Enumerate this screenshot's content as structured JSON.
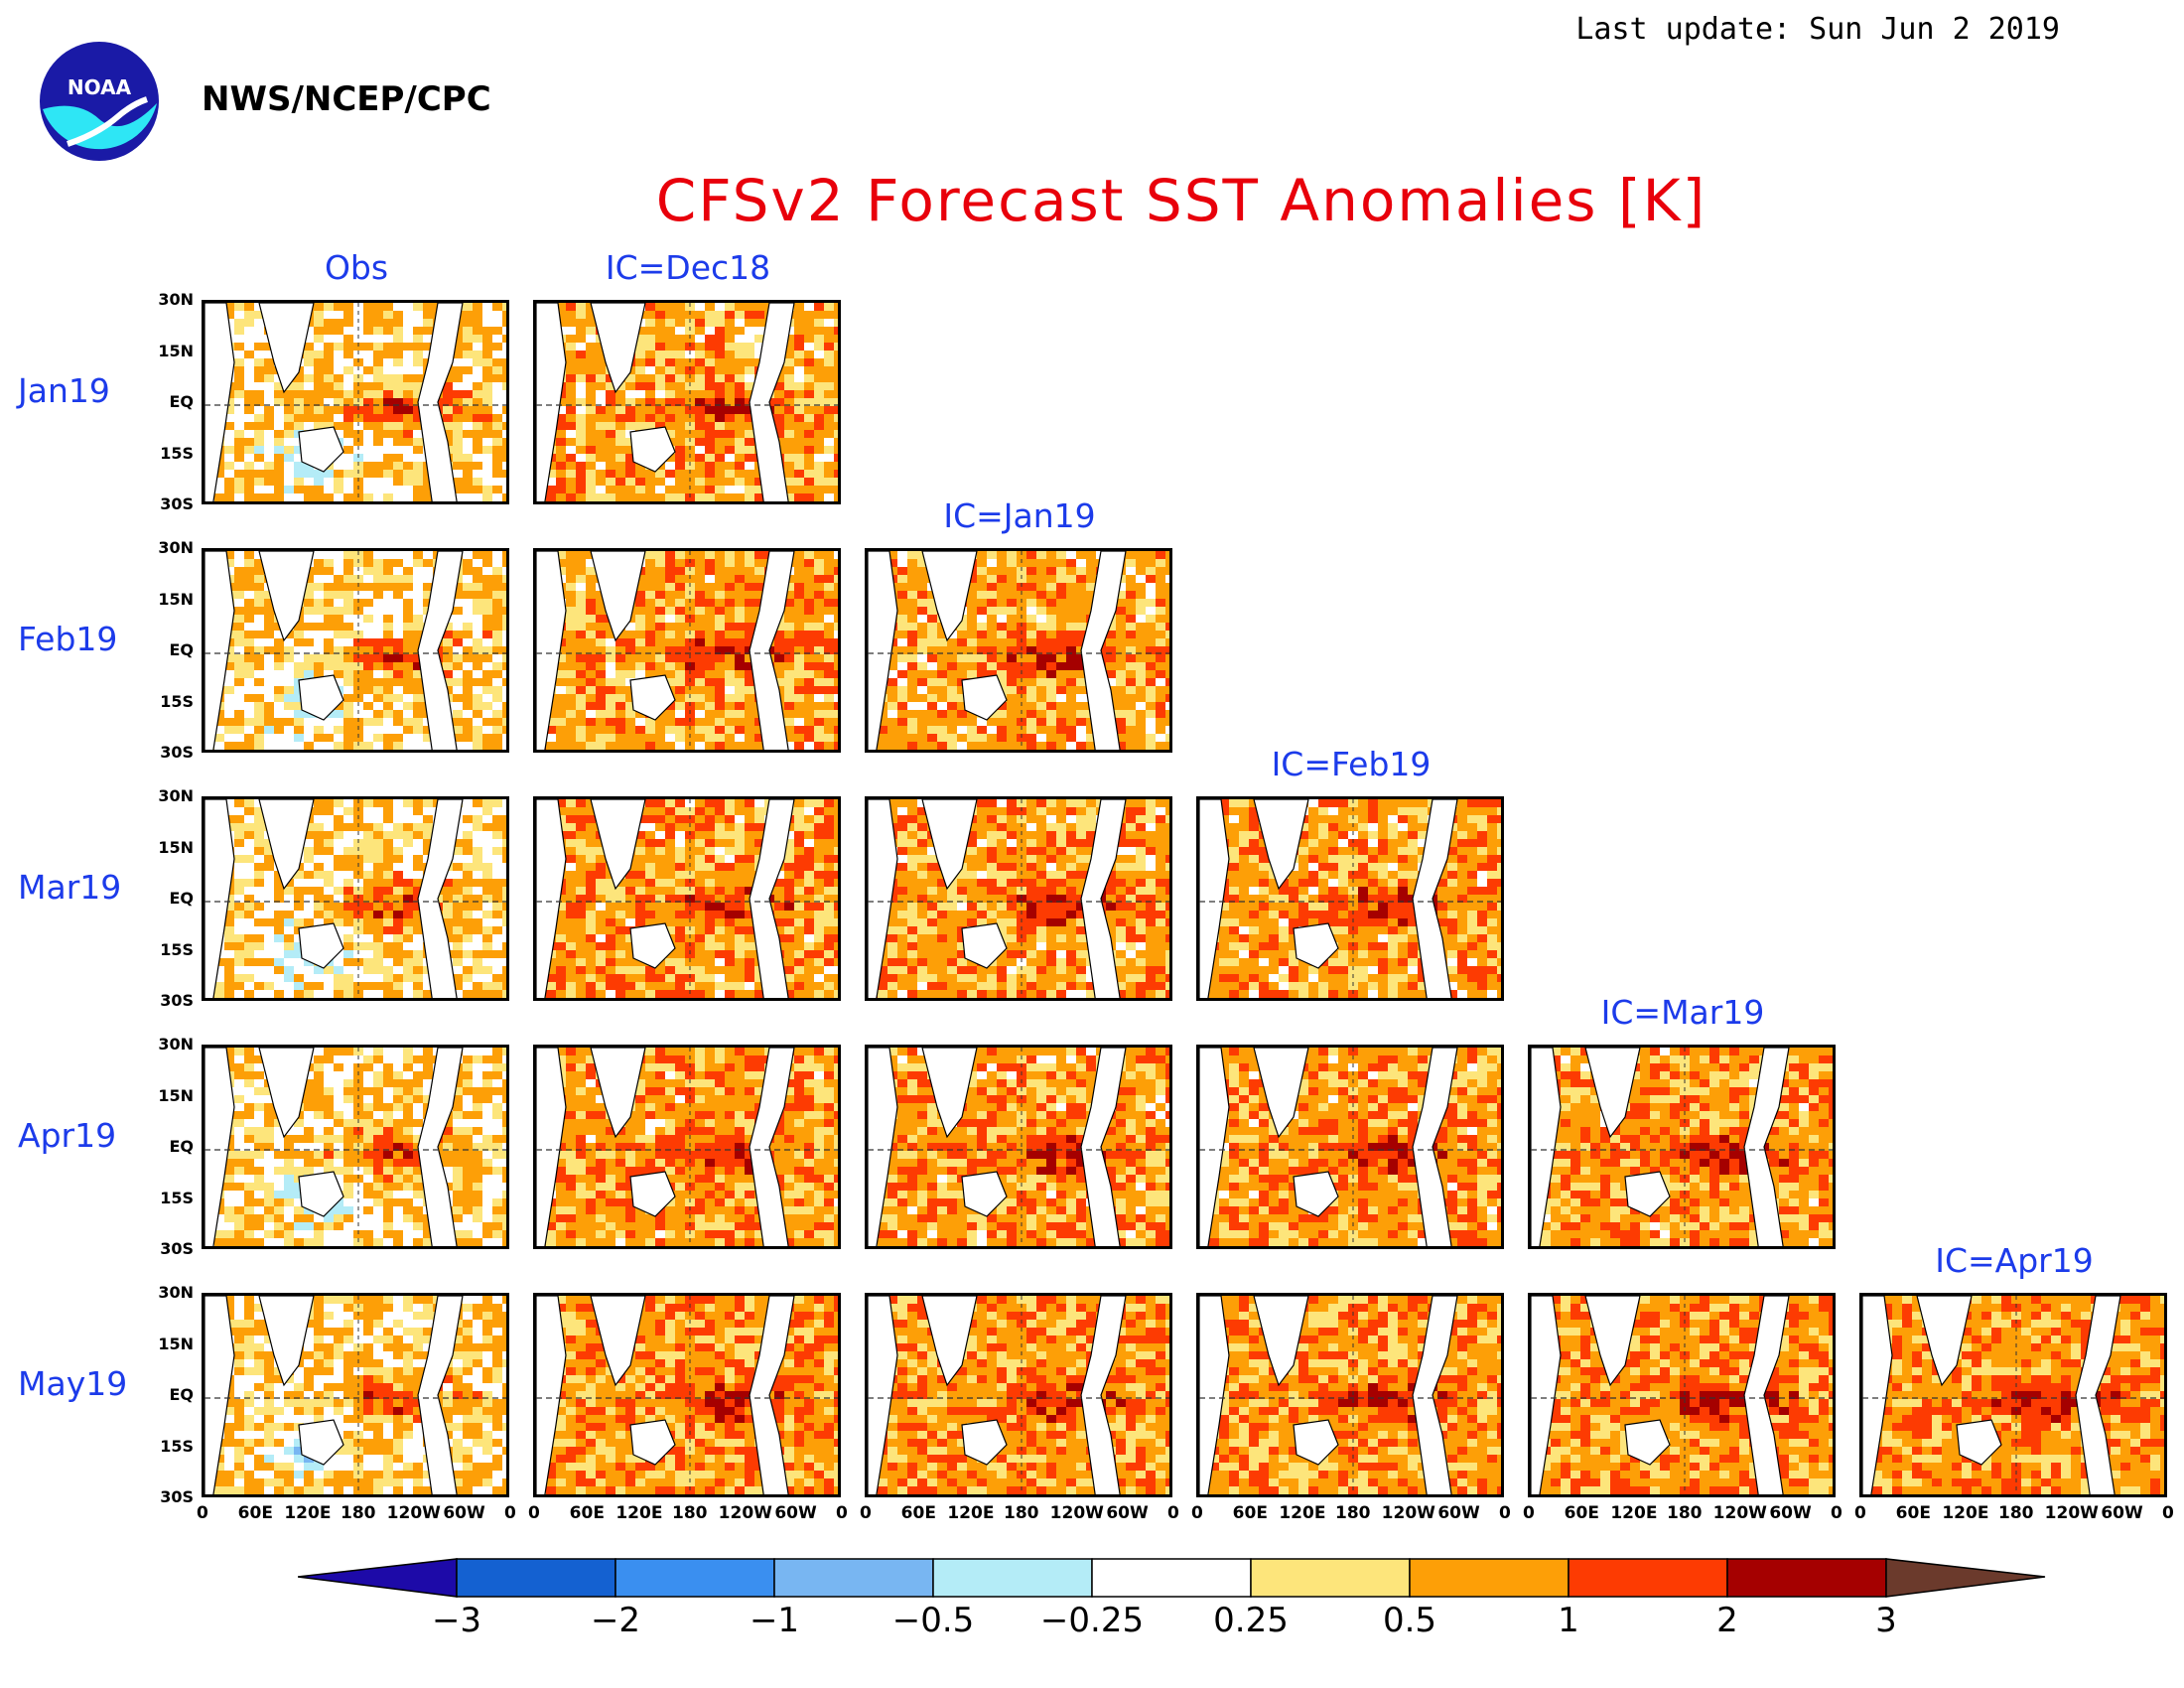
{
  "header": {
    "last_update": "Last update: Sun Jun 2 2019",
    "agency": "NWS/NCEP/CPC",
    "logo_text": "NOAA",
    "title": "CFSv2 Forecast SST Anomalies [K]"
  },
  "columns": [
    "Obs",
    "IC=Dec18",
    "IC=Jan19",
    "IC=Feb19",
    "IC=Mar19",
    "IC=Apr19"
  ],
  "rows": [
    "Jan19",
    "Feb19",
    "Mar19",
    "Apr19",
    "May19"
  ],
  "lat_labels": [
    "30N",
    "15N",
    "EQ",
    "15S",
    "30S"
  ],
  "lon_labels": [
    "0",
    "60E",
    "120E",
    "180",
    "120W",
    "60W",
    "0"
  ],
  "colorbar": {
    "levels": [
      "-3",
      "-2",
      "-1",
      "-0.5",
      "-0.25",
      "0.25",
      "0.5",
      "1",
      "2",
      "3"
    ],
    "colors": [
      "#1d0aa8",
      "#1461d1",
      "#3a8ff0",
      "#78b6f2",
      "#b4ecf7",
      "#ffffff",
      "#fde57b",
      "#fd9f07",
      "#fd3b02",
      "#a50000",
      "#6b3a2c"
    ]
  }
}
